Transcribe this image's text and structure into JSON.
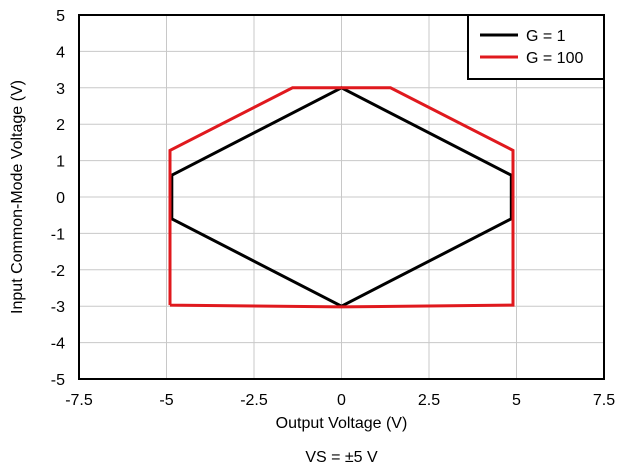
{
  "chart_data": {
    "type": "line",
    "xlabel": "Output Voltage (V)",
    "ylabel": "Input Common-Mode Voltage (V)",
    "caption": "VS = ±5 V",
    "xlim": [
      -7.5,
      7.5
    ],
    "ylim": [
      -5,
      5
    ],
    "x_ticks": [
      "-7.5",
      "-5",
      "-2.5",
      "0",
      "2.5",
      "5",
      "7.5"
    ],
    "y_ticks": [
      "5",
      "4",
      "3",
      "2",
      "1",
      "0",
      "-1",
      "-2",
      "-3",
      "-4",
      "-5"
    ],
    "grid": true,
    "legend_position": "top-right",
    "series": [
      {
        "name": "G = 1",
        "color": "#000000",
        "points": [
          [
            -4.85,
            0.6
          ],
          [
            0,
            3
          ],
          [
            4.85,
            0.6
          ],
          [
            4.85,
            -0.6
          ],
          [
            0,
            -3
          ],
          [
            -4.85,
            -0.6
          ],
          [
            -4.85,
            0.6
          ]
        ]
      },
      {
        "name": "G = 100",
        "color": "#e0191e",
        "points": [
          [
            -4.9,
            -2.97
          ],
          [
            -4.9,
            1.28
          ],
          [
            -1.4,
            3
          ],
          [
            1.4,
            3
          ],
          [
            4.9,
            1.28
          ],
          [
            4.9,
            -2.97
          ],
          [
            0,
            -3.02
          ],
          [
            -4.9,
            -2.97
          ]
        ]
      }
    ]
  }
}
